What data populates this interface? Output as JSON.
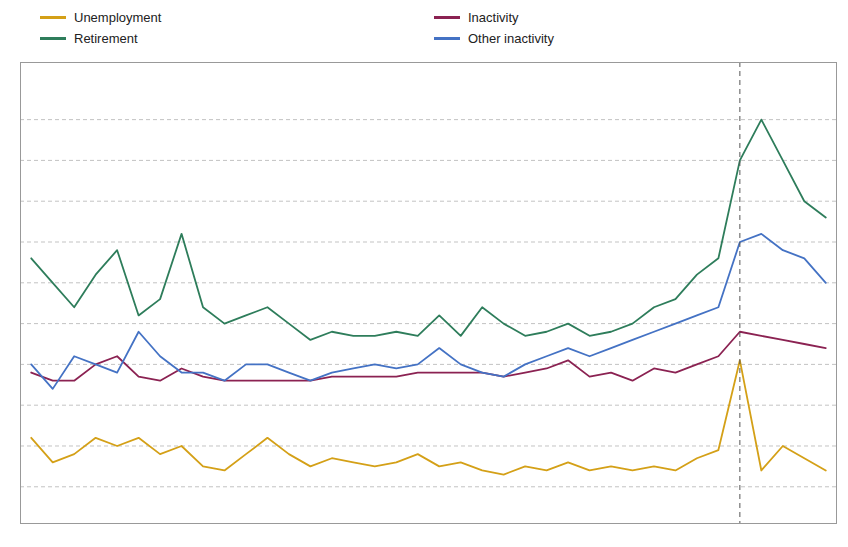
{
  "chart_data": {
    "type": "line",
    "x": [
      0,
      1,
      2,
      3,
      4,
      5,
      6,
      7,
      8,
      9,
      10,
      11,
      12,
      13,
      14,
      15,
      16,
      17,
      18,
      19,
      20,
      21,
      22,
      23,
      24,
      25,
      26,
      27,
      28,
      29,
      30,
      31,
      32,
      33,
      34,
      35,
      36,
      37
    ],
    "series": [
      {
        "name": "Unemployment",
        "color": "#D4A017",
        "values": [
          1.6,
          1.3,
          1.4,
          1.6,
          1.5,
          1.6,
          1.4,
          1.5,
          1.25,
          1.2,
          1.4,
          1.6,
          1.4,
          1.25,
          1.35,
          1.3,
          1.25,
          1.3,
          1.4,
          1.25,
          1.3,
          1.2,
          1.15,
          1.25,
          1.2,
          1.3,
          1.2,
          1.25,
          1.2,
          1.25,
          1.2,
          1.35,
          1.45,
          2.55,
          1.2,
          1.5,
          1.35,
          1.2
        ]
      },
      {
        "name": "Inactivity",
        "color": "#8B2252",
        "values": [
          2.4,
          2.3,
          2.3,
          2.5,
          2.6,
          2.35,
          2.3,
          2.45,
          2.35,
          2.3,
          2.3,
          2.3,
          2.3,
          2.3,
          2.35,
          2.35,
          2.35,
          2.35,
          2.4,
          2.4,
          2.4,
          2.4,
          2.35,
          2.4,
          2.45,
          2.55,
          2.35,
          2.4,
          2.3,
          2.45,
          2.4,
          2.5,
          2.6,
          2.9,
          2.85,
          2.8,
          2.75,
          2.7
        ]
      },
      {
        "name": "Retirement",
        "color": "#2E7D5B",
        "values": [
          3.8,
          3.5,
          3.2,
          3.6,
          3.9,
          3.1,
          3.3,
          4.1,
          3.2,
          3.0,
          3.1,
          3.2,
          3.0,
          2.8,
          2.9,
          2.85,
          2.85,
          2.9,
          2.85,
          3.1,
          2.85,
          3.2,
          3.0,
          2.85,
          2.9,
          3.0,
          2.85,
          2.9,
          3.0,
          3.2,
          3.3,
          3.6,
          3.8,
          5.0,
          5.5,
          5.0,
          4.5,
          4.3
        ]
      },
      {
        "name": "Other inactivity",
        "color": "#4472C4",
        "values": [
          2.5,
          2.2,
          2.6,
          2.5,
          2.4,
          2.9,
          2.6,
          2.4,
          2.4,
          2.3,
          2.5,
          2.5,
          2.4,
          2.3,
          2.4,
          2.45,
          2.5,
          2.45,
          2.5,
          2.7,
          2.5,
          2.4,
          2.35,
          2.5,
          2.6,
          2.7,
          2.6,
          2.7,
          2.8,
          2.9,
          3.0,
          3.1,
          3.2,
          4.0,
          4.1,
          3.9,
          3.8,
          3.5
        ]
      }
    ],
    "xlim": [
      -0.5,
      37.5
    ],
    "xticks": [],
    "ylim": [
      0.55,
      6.2
    ],
    "yticks": [
      1.0,
      1.5,
      2.0,
      2.5,
      3.0,
      3.5,
      4.0,
      4.5,
      5.0,
      5.5
    ],
    "vline_x": 33,
    "vline_color": "#555555",
    "grid": true,
    "legend": "top",
    "tick_labels": false
  }
}
